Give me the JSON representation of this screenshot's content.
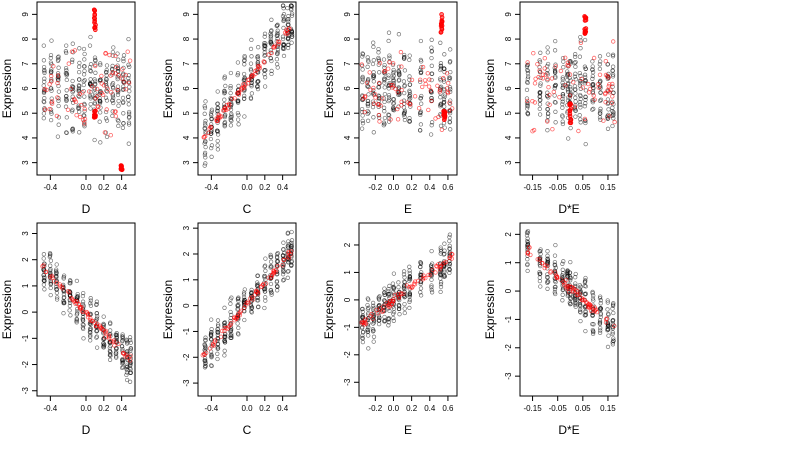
{
  "chart_data": [
    {
      "type": "scatter",
      "xlabel": "D",
      "ylabel": "Expression",
      "xlim": [
        -0.55,
        0.55
      ],
      "ylim": [
        2.5,
        9.5
      ],
      "xticks": [
        "-0.4",
        "0.0",
        "0.2",
        "0.4"
      ],
      "xtick_values": [
        -0.4,
        0.0,
        0.2,
        0.4
      ],
      "yticks": [
        "3",
        "4",
        "5",
        "6",
        "7",
        "8",
        "9"
      ],
      "ytick_values": [
        3,
        4,
        5,
        6,
        7,
        8,
        9
      ],
      "fit": "flat",
      "x_range": [
        -0.5,
        0.5
      ],
      "y_mean": 6.0,
      "y_spread": 1.5,
      "columns": [
        -0.47,
        -0.39,
        -0.31,
        -0.22,
        -0.15,
        -0.08,
        -0.02,
        0.05,
        0.1,
        0.16,
        0.23,
        0.3,
        0.36,
        0.42,
        0.48
      ],
      "highlight": [
        {
          "x": 0.1,
          "y_min": 8.2,
          "y_max": 9.2
        },
        {
          "x": 0.1,
          "y_min": 4.8,
          "y_max": 5.1
        },
        {
          "x": 0.4,
          "y_min": 2.7,
          "y_max": 2.9
        }
      ],
      "colors": {
        "points": "#000000",
        "fit": "#ff0000"
      }
    },
    {
      "type": "scatter",
      "xlabel": "C",
      "ylabel": "Expression",
      "xlim": [
        -0.55,
        0.55
      ],
      "ylim": [
        2.5,
        9.5
      ],
      "xticks": [
        "-0.4",
        "0.0",
        "0.2",
        "0.4"
      ],
      "xtick_values": [
        -0.4,
        0.0,
        0.2,
        0.4
      ],
      "yticks": [
        "3",
        "4",
        "5",
        "6",
        "7",
        "8",
        "9"
      ],
      "ytick_values": [
        3,
        4,
        5,
        6,
        7,
        8,
        9
      ],
      "fit": "increasing",
      "x_range": [
        -0.5,
        0.5
      ],
      "y_start": 4.0,
      "y_end": 8.5,
      "y_spread": 1.0,
      "columns": [
        -0.47,
        -0.4,
        -0.33,
        -0.25,
        -0.18,
        -0.1,
        -0.03,
        0.05,
        0.12,
        0.2,
        0.27,
        0.34,
        0.41,
        0.46,
        0.5
      ],
      "highlight": [],
      "colors": {
        "points": "#000000",
        "fit": "#ff0000"
      }
    },
    {
      "type": "scatter",
      "xlabel": "E",
      "ylabel": "Expression",
      "xlim": [
        -0.38,
        0.7
      ],
      "ylim": [
        2.5,
        9.5
      ],
      "xticks": [
        "-0.2",
        "0.0",
        "0.2",
        "0.4",
        "0.6"
      ],
      "xtick_values": [
        -0.2,
        0.0,
        0.2,
        0.4,
        0.6
      ],
      "yticks": [
        "3",
        "4",
        "5",
        "6",
        "7",
        "8",
        "9"
      ],
      "ytick_values": [
        3,
        4,
        5,
        6,
        7,
        8,
        9
      ],
      "fit": "flat",
      "x_range": [
        -0.35,
        0.65
      ],
      "y_mean": 6.0,
      "y_spread": 1.5,
      "columns": [
        -0.34,
        -0.28,
        -0.22,
        -0.16,
        -0.1,
        -0.05,
        0.0,
        0.06,
        0.12,
        0.18,
        0.3,
        0.42,
        0.52,
        0.56,
        0.62
      ],
      "highlight": [
        {
          "x": 0.53,
          "y_min": 8.2,
          "y_max": 9.0
        },
        {
          "x": 0.56,
          "y_min": 4.7,
          "y_max": 5.1
        }
      ],
      "colors": {
        "points": "#000000",
        "fit": "#ff0000"
      }
    },
    {
      "type": "scatter",
      "xlabel": "D*E",
      "ylabel": "Expression",
      "xlim": [
        -0.2,
        0.19
      ],
      "ylim": [
        2.5,
        9.5
      ],
      "xticks": [
        "-0.15",
        "-0.05",
        "0.05",
        "0.15"
      ],
      "xtick_values": [
        -0.15,
        -0.05,
        0.05,
        0.15
      ],
      "yticks": [
        "3",
        "4",
        "5",
        "6",
        "7",
        "8",
        "9"
      ],
      "ytick_values": [
        3,
        4,
        5,
        6,
        7,
        8,
        9
      ],
      "fit": "flat",
      "x_range": [
        -0.18,
        0.18
      ],
      "y_mean": 6.0,
      "y_spread": 1.5,
      "columns": [
        -0.17,
        -0.12,
        -0.09,
        -0.06,
        -0.03,
        -0.01,
        0.0,
        0.02,
        0.04,
        0.06,
        0.09,
        0.12,
        0.15,
        0.17
      ],
      "highlight": [
        {
          "x": 0.06,
          "y_min": 8.2,
          "y_max": 9.0
        },
        {
          "x": 0.0,
          "y_min": 4.6,
          "y_max": 5.4
        }
      ],
      "colors": {
        "points": "#000000",
        "fit": "#ff0000"
      }
    },
    {
      "type": "scatter",
      "xlabel": "D",
      "ylabel": "Expression",
      "xlim": [
        -0.55,
        0.55
      ],
      "ylim": [
        -3.2,
        3.4
      ],
      "xticks": [
        "-0.4",
        "0.0",
        "0.2",
        "0.4"
      ],
      "xtick_values": [
        -0.4,
        0.0,
        0.2,
        0.4
      ],
      "yticks": [
        "-3",
        "-2",
        "-1",
        "0",
        "1",
        "2",
        "3"
      ],
      "ytick_values": [
        -3,
        -2,
        -1,
        0,
        1,
        2,
        3
      ],
      "fit": "decreasing",
      "x_range": [
        -0.5,
        0.5
      ],
      "y_start": 1.7,
      "y_end": -1.8,
      "y_spread": 0.7,
      "columns": [
        -0.47,
        -0.4,
        -0.33,
        -0.25,
        -0.18,
        -0.1,
        -0.03,
        0.05,
        0.12,
        0.2,
        0.27,
        0.34,
        0.41,
        0.46,
        0.5
      ],
      "highlight": [],
      "colors": {
        "points": "#000000",
        "fit": "#ff0000"
      }
    },
    {
      "type": "scatter",
      "xlabel": "C",
      "ylabel": "Expression",
      "xlim": [
        -0.55,
        0.55
      ],
      "ylim": [
        -3.5,
        3.2
      ],
      "xticks": [
        "-0.4",
        "0.0",
        "0.2",
        "0.4"
      ],
      "xtick_values": [
        -0.4,
        0.0,
        0.2,
        0.4
      ],
      "yticks": [
        "-3",
        "-2",
        "-1",
        "0",
        "1",
        "2",
        "3"
      ],
      "ytick_values": [
        -3,
        -2,
        -1,
        0,
        1,
        2,
        3
      ],
      "fit": "increasing",
      "x_range": [
        -0.5,
        0.5
      ],
      "y_start": -2.0,
      "y_end": 2.1,
      "y_spread": 0.7,
      "columns": [
        -0.47,
        -0.4,
        -0.33,
        -0.25,
        -0.18,
        -0.1,
        -0.03,
        0.05,
        0.12,
        0.2,
        0.27,
        0.34,
        0.41,
        0.46,
        0.5
      ],
      "highlight": [],
      "colors": {
        "points": "#000000",
        "fit": "#ff0000"
      }
    },
    {
      "type": "scatter",
      "xlabel": "E",
      "ylabel": "Expression",
      "xlim": [
        -0.38,
        0.7
      ],
      "ylim": [
        -3.5,
        2.8
      ],
      "xticks": [
        "-0.2",
        "0.0",
        "0.2",
        "0.4",
        "0.6"
      ],
      "xtick_values": [
        -0.2,
        0.0,
        0.2,
        0.4,
        0.6
      ],
      "yticks": [
        "-3",
        "-2",
        "-1",
        "0",
        "1",
        "2"
      ],
      "ytick_values": [
        -3,
        -2,
        -1,
        0,
        1,
        2
      ],
      "fit": "increasing",
      "x_range": [
        -0.35,
        0.65
      ],
      "y_start": -0.9,
      "y_end": 1.6,
      "y_spread": 0.7,
      "columns": [
        -0.34,
        -0.28,
        -0.22,
        -0.16,
        -0.1,
        -0.05,
        0.0,
        0.06,
        0.12,
        0.18,
        0.3,
        0.42,
        0.52,
        0.56,
        0.62
      ],
      "highlight": [],
      "colors": {
        "points": "#000000",
        "fit": "#ff0000"
      }
    },
    {
      "type": "scatter",
      "xlabel": "D*E",
      "ylabel": "Expression",
      "xlim": [
        -0.2,
        0.19
      ],
      "ylim": [
        -3.7,
        2.4
      ],
      "xticks": [
        "-0.15",
        "-0.05",
        "0.05",
        "0.15"
      ],
      "xtick_values": [
        -0.15,
        -0.05,
        0.05,
        0.15
      ],
      "yticks": [
        "-3",
        "-2",
        "-1",
        "0",
        "1",
        "2"
      ],
      "ytick_values": [
        -3,
        -2,
        -1,
        0,
        1,
        2
      ],
      "fit": "decreasing",
      "x_range": [
        -0.18,
        0.18
      ],
      "y_start": 1.5,
      "y_end": -1.3,
      "y_spread": 0.7,
      "columns": [
        -0.17,
        -0.12,
        -0.09,
        -0.06,
        -0.03,
        -0.01,
        0.0,
        0.02,
        0.04,
        0.06,
        0.09,
        0.12,
        0.15,
        0.17
      ],
      "highlight": [],
      "colors": {
        "points": "#000000",
        "fit": "#ff0000"
      }
    }
  ]
}
